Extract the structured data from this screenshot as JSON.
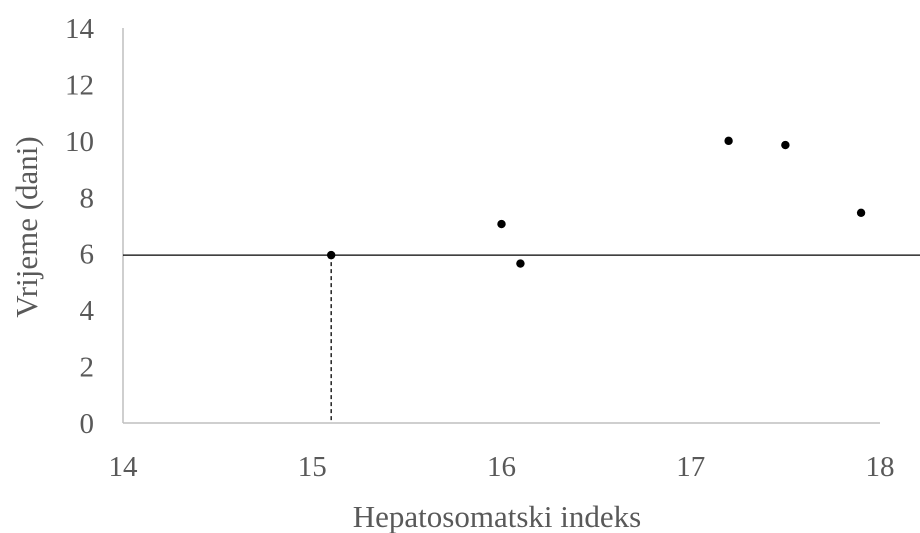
{
  "chart_data": {
    "type": "scatter",
    "xlabel": "Hepatosomatski indeks",
    "ylabel": "Vrijeme (dani)",
    "xlim": [
      14,
      18
    ],
    "ylim": [
      0,
      14
    ],
    "x_ticks": [
      "14",
      "15",
      "16",
      "17",
      "18"
    ],
    "y_ticks": [
      "0",
      "2",
      "4",
      "6",
      "8",
      "10",
      "12",
      "14"
    ],
    "grid": false,
    "points": [
      {
        "x": 15.1,
        "y": 5.95
      },
      {
        "x": 16.0,
        "y": 7.05
      },
      {
        "x": 16.1,
        "y": 5.65
      },
      {
        "x": 17.2,
        "y": 10.0
      },
      {
        "x": 17.5,
        "y": 9.85
      },
      {
        "x": 17.9,
        "y": 7.45
      }
    ],
    "reference_lines": {
      "horizontal_y": 5.95,
      "vertical_x": 15.1
    },
    "marker_color": "#000000",
    "axis_color": "#bfbfbf",
    "text_color": "#595959"
  }
}
